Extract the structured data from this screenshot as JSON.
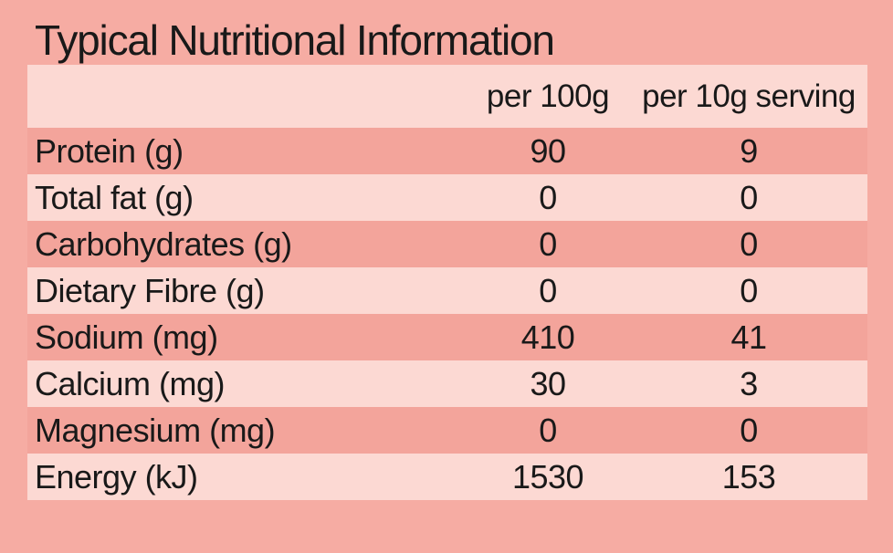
{
  "title": "Typical Nutritional Information",
  "table": {
    "columns": [
      "",
      "per 100g",
      "per 10g serving"
    ],
    "rows": [
      {
        "label": "Protein (g)",
        "per_100g": "90",
        "per_serving": "9"
      },
      {
        "label": "Total fat (g)",
        "per_100g": "0",
        "per_serving": "0"
      },
      {
        "label": "Carbohydrates (g)",
        "per_100g": "0",
        "per_serving": "0"
      },
      {
        "label": "Dietary Fibre (g)",
        "per_100g": "0",
        "per_serving": "0"
      },
      {
        "label": "Sodium (mg)",
        "per_100g": "410",
        "per_serving": "41"
      },
      {
        "label": "Calcium (mg)",
        "per_100g": "30",
        "per_serving": "3"
      },
      {
        "label": "Magnesium (mg)",
        "per_100g": "0",
        "per_serving": "0"
      },
      {
        "label": "Energy (kJ)",
        "per_100g": "1530",
        "per_serving": "153"
      }
    ]
  },
  "colors": {
    "background": "#f6aca3",
    "row_light": "#fcd9d3",
    "row_dark": "#f3a49b",
    "text": "#191919"
  }
}
